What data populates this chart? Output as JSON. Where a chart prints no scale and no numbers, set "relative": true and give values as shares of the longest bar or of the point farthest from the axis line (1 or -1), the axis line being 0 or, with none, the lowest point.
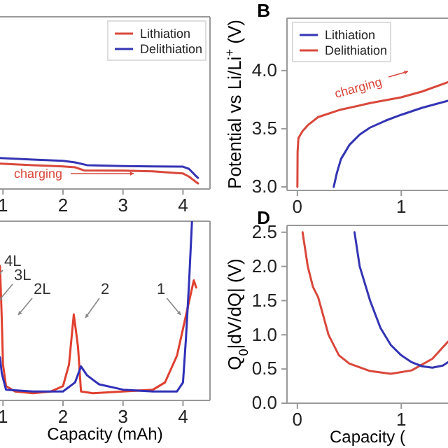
{
  "chart_data": [
    {
      "type": "line",
      "relative": true,
      "xlim": [
        0.95,
        4.45
      ],
      "xticks": [
        1,
        2,
        3,
        4
      ],
      "tick_labels": "x",
      "legend": "top right",
      "series": [
        {
          "name": "Lithiation",
          "color": "#d9483b",
          "x": [
            0.95,
            1.5,
            2.0,
            2.2,
            2.35,
            3.0,
            3.5,
            4.0,
            4.1,
            4.2,
            4.25
          ],
          "values": [
            0.82,
            0.77,
            0.73,
            0.7,
            0.6,
            0.59,
            0.57,
            0.5,
            0.4,
            0.25,
            0.18
          ]
        },
        {
          "name": "Delithiation",
          "color": "#3434b4",
          "x": [
            0.95,
            1.5,
            2.0,
            2.2,
            2.4,
            3.0,
            3.5,
            4.0,
            4.1,
            4.2,
            4.25
          ],
          "values": [
            1.0,
            0.95,
            0.91,
            0.86,
            0.77,
            0.74,
            0.73,
            0.72,
            0.65,
            0.45,
            0.36
          ]
        }
      ],
      "annotations": [
        "charging"
      ]
    },
    {
      "type": "line",
      "title": "B",
      "ylabel": "Potential vs Li/Li$^{+}$ (V)",
      "xlim": [
        -0.1,
        1.45
      ],
      "ylim": [
        2.97,
        4.45
      ],
      "xticks": [
        0,
        1
      ],
      "yticks": [
        {
          "value": 3,
          "label": "3.0"
        },
        {
          "value": 3.5,
          "label": "3.5"
        },
        {
          "value": 4,
          "label": "4.0"
        }
      ],
      "legend": "top left",
      "series": [
        {
          "name": "Lithiation",
          "color": "#3434b4",
          "x": [
            0.35,
            0.38,
            0.42,
            0.5,
            0.6,
            0.7,
            0.85,
            1.0,
            1.2,
            1.45
          ],
          "values": [
            3.0,
            3.12,
            3.24,
            3.36,
            3.45,
            3.51,
            3.57,
            3.62,
            3.68,
            3.74
          ]
        },
        {
          "name": "Delithiation",
          "color": "#d9483b",
          "x": [
            0,
            0.002,
            0.01,
            0.05,
            0.1,
            0.2,
            0.4,
            0.7,
            1.0,
            1.2,
            1.45
          ],
          "values": [
            3.0,
            3.3,
            3.42,
            3.48,
            3.53,
            3.6,
            3.66,
            3.72,
            3.77,
            3.82,
            3.9
          ]
        }
      ],
      "annotations": [
        "charging"
      ]
    },
    {
      "type": "line",
      "relative": true,
      "xlabel": "Capacity (mAh)",
      "xlim": [
        0.95,
        4.45
      ],
      "xticks": [
        1,
        2,
        3,
        4
      ],
      "tick_labels": "x",
      "series": [
        {
          "color": "#e0402f",
          "x": [
            0.95,
            0.98,
            1.0,
            1.05,
            1.2,
            1.5,
            1.8,
            2.0,
            2.1,
            2.18,
            2.25,
            2.3,
            2.5,
            3.0,
            3.5,
            3.7,
            3.9,
            4.0,
            4.1,
            4.18,
            4.22
          ],
          "values": [
            0.75,
            0.45,
            0.2,
            0.08,
            0.05,
            0.04,
            0.05,
            0.08,
            0.2,
            0.48,
            0.3,
            0.05,
            0.04,
            0.05,
            0.06,
            0.1,
            0.25,
            0.4,
            0.55,
            0.67,
            0.63
          ]
        },
        {
          "color": "#3030b8",
          "x": [
            0.95,
            0.98,
            1.05,
            1.5,
            2.0,
            2.2,
            2.3,
            2.4,
            2.6,
            3.0,
            3.5,
            3.9,
            4.0,
            4.05,
            4.1,
            4.15
          ],
          "values": [
            0.24,
            0.15,
            0.06,
            0.05,
            0.05,
            0.1,
            0.19,
            0.14,
            0.09,
            0.06,
            0.05,
            0.05,
            0.1,
            0.35,
            0.65,
            1.0
          ]
        }
      ],
      "annotations": [
        "4L",
        "3L",
        "2L",
        "2",
        "1"
      ]
    },
    {
      "type": "line",
      "title": "D",
      "ylabel": "Q$_{0}$|dV/dQ| (V)",
      "xlabel": "Capacity (",
      "xlim": [
        -0.1,
        1.45
      ],
      "ylim": [
        0,
        2.6
      ],
      "xticks": [
        0,
        1
      ],
      "yticks": [
        {
          "value": 0,
          "label": "0.0"
        },
        {
          "value": 0.5,
          "label": "0.5"
        },
        {
          "value": 1,
          "label": "1.0"
        },
        {
          "value": 1.5,
          "label": "1.5"
        },
        {
          "value": 2,
          "label": "2.0"
        },
        {
          "value": 2.5,
          "label": "2.5"
        }
      ],
      "series": [
        {
          "color": "#d9483b",
          "x": [
            0.05,
            0.08,
            0.1,
            0.15,
            0.2,
            0.3,
            0.4,
            0.5,
            0.7,
            0.9,
            1.1,
            1.3,
            1.45
          ],
          "values": [
            2.5,
            2.2,
            2.0,
            1.7,
            1.55,
            1.0,
            0.7,
            0.58,
            0.47,
            0.43,
            0.48,
            0.65,
            0.9
          ]
        },
        {
          "color": "#3434b4",
          "x": [
            0.55,
            0.6,
            0.7,
            0.8,
            0.9,
            1.0,
            1.1,
            1.2,
            1.3,
            1.4,
            1.45
          ],
          "values": [
            2.5,
            2.0,
            1.5,
            1.1,
            0.85,
            0.7,
            0.6,
            0.54,
            0.52,
            0.55,
            0.6
          ]
        }
      ]
    }
  ]
}
